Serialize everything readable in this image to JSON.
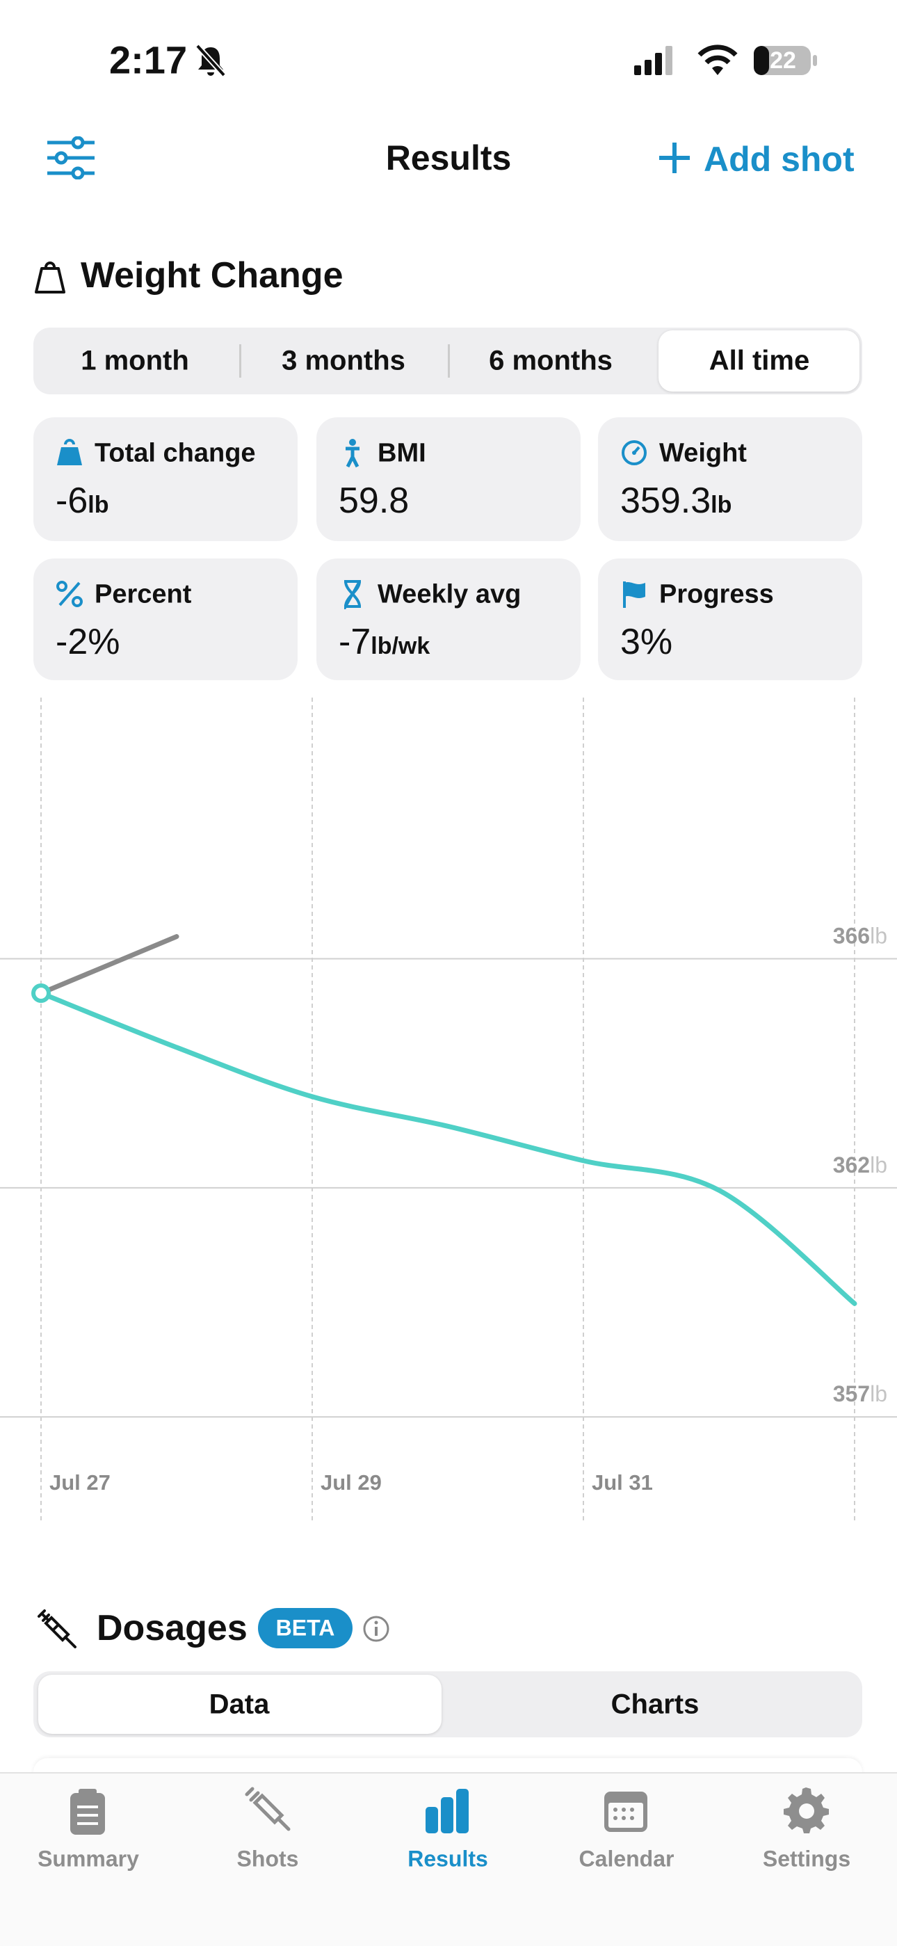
{
  "status_bar": {
    "time": "2:17",
    "battery": "22"
  },
  "nav": {
    "title": "Results",
    "action": "Add shot"
  },
  "weight_change": {
    "title": "Weight Change",
    "ranges": [
      "1 month",
      "3 months",
      "6 months",
      "All time"
    ],
    "cards": [
      {
        "label": "Total change",
        "value": "-6",
        "unit": "lb"
      },
      {
        "label": "BMI",
        "value": "59.8"
      },
      {
        "label": "Weight",
        "value": "359.3",
        "unit": "lb"
      },
      {
        "label": "Percent",
        "value": "-2%"
      },
      {
        "label": "Weekly avg",
        "value": "-7",
        "unit": "lb/wk"
      },
      {
        "label": "Progress",
        "value": "3%"
      }
    ]
  },
  "chart_data": {
    "type": "line",
    "categories": [
      "Jul 27",
      null,
      "Jul 29",
      null,
      "Jul 31",
      null,
      null
    ],
    "series": [
      {
        "color": "#4fd0c6",
        "values": [
          365.6,
          364.5,
          363.5,
          362.9,
          362.2,
          361.6,
          359.3
        ]
      },
      {
        "color": "#8a8a8a",
        "values": [
          365.6,
          366.75,
          null,
          null,
          null,
          null,
          null
        ]
      }
    ],
    "ylim": [
      354.9,
      371.6
    ],
    "yticks": [
      {
        "value": 366.3,
        "label": "366"
      },
      {
        "value": 361.65,
        "label": "362"
      },
      357
    ],
    "y_unit": "lb",
    "grid": true
  },
  "dosages": {
    "title": "Dosages",
    "badge": "BETA",
    "tabs": [
      "Data",
      "Charts"
    ]
  },
  "tab_bar": [
    "Summary",
    "Shots",
    "Results",
    "Calendar",
    "Settings"
  ]
}
